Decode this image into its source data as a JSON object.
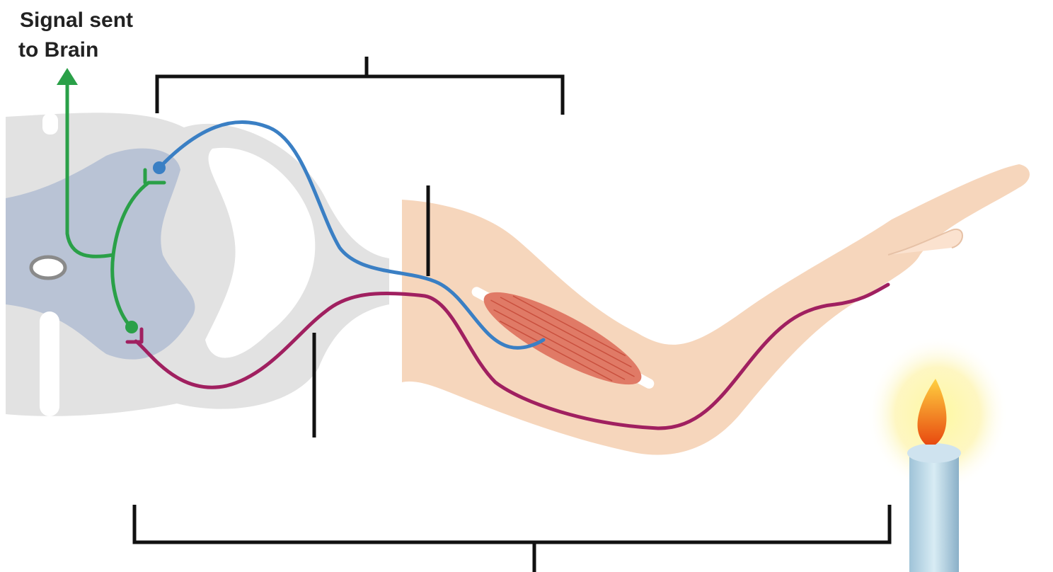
{
  "label": {
    "lines": [
      "Signal sent",
      "to Brain"
    ]
  }
}
